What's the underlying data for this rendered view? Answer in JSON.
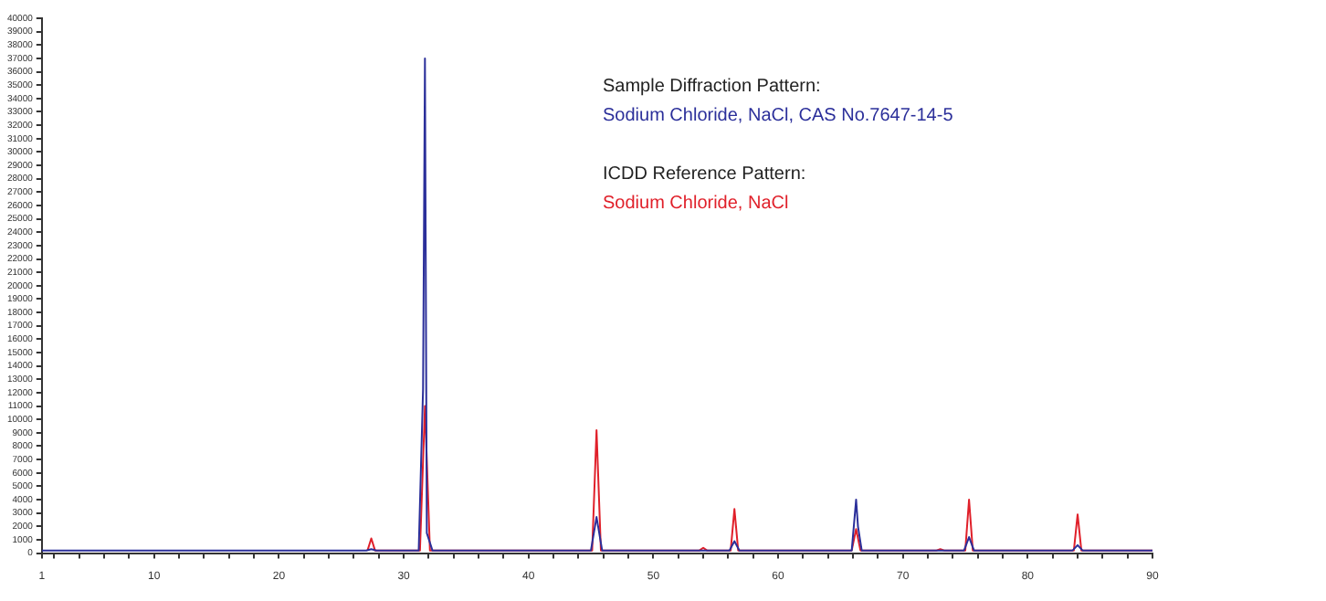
{
  "chart_data": {
    "type": "line",
    "annotations": [
      "Sample Diffraction Pattern:",
      "ICDD Reference Pattern:"
    ],
    "series": [
      {
        "name": "Sodium Chloride, NaCl, CAS No.7647-14-5",
        "color": "#2b2f9a",
        "x": [
          1,
          27.0,
          27.4,
          27.8,
          31.2,
          31.55,
          31.7,
          31.85,
          32.3,
          45.0,
          45.45,
          45.9,
          56.1,
          56.5,
          56.9,
          65.9,
          66.25,
          66.4,
          66.7,
          74.9,
          75.3,
          75.7,
          83.6,
          84.0,
          84.4,
          90
        ],
        "values": [
          200,
          200,
          300,
          200,
          200,
          12300,
          37000,
          1500,
          200,
          200,
          2700,
          200,
          200,
          900,
          200,
          200,
          4000,
          2000,
          200,
          200,
          1200,
          200,
          200,
          600,
          200,
          200
        ]
      },
      {
        "name": "Sodium Chloride, NaCl",
        "color": "#e0202a",
        "x": [
          27.1,
          27.4,
          27.7,
          31.3,
          31.7,
          32.1,
          45.1,
          45.45,
          45.8,
          53.7,
          54.0,
          54.3,
          56.2,
          56.5,
          56.8,
          65.9,
          66.25,
          66.6,
          72.7,
          73.0,
          73.3,
          75.0,
          75.3,
          75.6,
          83.7,
          84.0,
          84.3,
          90
        ],
        "values": [
          200,
          1100,
          200,
          200,
          11000,
          200,
          200,
          9200,
          200,
          200,
          400,
          200,
          200,
          3300,
          200,
          200,
          1800,
          200,
          200,
          300,
          200,
          200,
          4000,
          200,
          200,
          2900,
          200,
          200
        ]
      }
    ],
    "xlim": [
      1,
      90
    ],
    "xticks": [
      1,
      {
        "value": 2,
        "label": null
      },
      {
        "value": 4,
        "label": null
      },
      {
        "value": 6,
        "label": null
      },
      {
        "value": 8,
        "label": null
      },
      10,
      {
        "value": 12,
        "label": null
      },
      {
        "value": 14,
        "label": null
      },
      {
        "value": 16,
        "label": null
      },
      {
        "value": 18,
        "label": null
      },
      20,
      {
        "value": 22,
        "label": null
      },
      {
        "value": 24,
        "label": null
      },
      {
        "value": 26,
        "label": null
      },
      {
        "value": 28,
        "label": null
      },
      30,
      {
        "value": 32,
        "label": null
      },
      {
        "value": 34,
        "label": null
      },
      {
        "value": 36,
        "label": null
      },
      {
        "value": 38,
        "label": null
      },
      40,
      {
        "value": 42,
        "label": null
      },
      {
        "value": 44,
        "label": null
      },
      {
        "value": 46,
        "label": null
      },
      {
        "value": 48,
        "label": null
      },
      50,
      {
        "value": 52,
        "label": null
      },
      {
        "value": 54,
        "label": null
      },
      {
        "value": 56,
        "label": null
      },
      {
        "value": 58,
        "label": null
      },
      60,
      {
        "value": 62,
        "label": null
      },
      {
        "value": 64,
        "label": null
      },
      {
        "value": 66,
        "label": null
      },
      {
        "value": 68,
        "label": null
      },
      70,
      {
        "value": 72,
        "label": null
      },
      {
        "value": 74,
        "label": null
      },
      {
        "value": 76,
        "label": null
      },
      {
        "value": 78,
        "label": null
      },
      80,
      {
        "value": 82,
        "label": null
      },
      {
        "value": 84,
        "label": null
      },
      {
        "value": 86,
        "label": null
      },
      {
        "value": 88,
        "label": null
      },
      90
    ],
    "ylim": [
      0,
      40000
    ],
    "yticks": [
      0,
      1000,
      2000,
      3000,
      4000,
      5000,
      6000,
      7000,
      8000,
      9000,
      10000,
      11000,
      12000,
      13000,
      14000,
      15000,
      16000,
      17000,
      18000,
      19000,
      20000,
      21000,
      22000,
      23000,
      24000,
      25000,
      26000,
      27000,
      28000,
      29000,
      30000,
      31000,
      32000,
      33000,
      34000,
      35000,
      36000,
      37000,
      38000,
      39000,
      40000
    ],
    "marker": "none",
    "line_style": "solid"
  }
}
